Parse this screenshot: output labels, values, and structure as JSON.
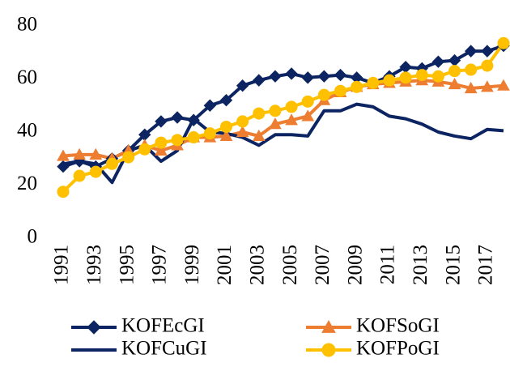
{
  "chart_data": {
    "type": "line",
    "categories": [
      "1991",
      null,
      "1993",
      null,
      "1995",
      null,
      "1997",
      null,
      "1999",
      null,
      "2001",
      null,
      "2003",
      null,
      "2005",
      null,
      "2007",
      null,
      "2009",
      null,
      "2011",
      null,
      "2013",
      null,
      "2015",
      null,
      "2017",
      null
    ],
    "ylim": [
      0,
      80
    ],
    "yticks": [
      0,
      20,
      40,
      60,
      80
    ],
    "grid": false,
    "legend": "bottom",
    "series": [
      {
        "name": "KOFEcGI",
        "color": "#0c2461",
        "marker": "diamond",
        "values": [
          27,
          29,
          27,
          30,
          33,
          39,
          44,
          45.5,
          44.5,
          50,
          52,
          57.5,
          59.5,
          61,
          62,
          60.5,
          61,
          61.5,
          60.5,
          58.5,
          61,
          64.5,
          64,
          66.5,
          67,
          70.5,
          70.5,
          72.5
        ]
      },
      {
        "name": "KOFSoGI",
        "color": "#ed7d31",
        "marker": "triangle",
        "values": [
          31,
          31.5,
          31.5,
          30,
          33,
          35,
          33,
          35,
          38,
          38,
          38.5,
          40,
          38.5,
          43,
          44.5,
          46,
          52,
          55,
          57,
          58,
          58.5,
          59,
          59.5,
          59,
          58,
          56.5,
          57,
          57.5
        ]
      },
      {
        "name": "KOFCuGI",
        "color": "#0c2461",
        "marker": null,
        "values": [
          28,
          29,
          28,
          21,
          33,
          35,
          29,
          33,
          45,
          40,
          39.5,
          38,
          35,
          39,
          39,
          38.5,
          48,
          48,
          50.5,
          49.5,
          46,
          45,
          43,
          40,
          38.5,
          37.5,
          41,
          40.5
        ]
      },
      {
        "name": "KOFPoGI",
        "color": "#ffc000",
        "marker": "circle",
        "values": [
          17.5,
          23.5,
          25,
          28,
          30.5,
          33.5,
          36,
          37,
          38,
          39.5,
          42,
          44,
          47,
          48,
          49.5,
          51.5,
          54,
          55.5,
          57,
          58.5,
          59.5,
          60.5,
          61.5,
          61,
          63,
          63.5,
          65,
          73.5
        ]
      }
    ]
  }
}
